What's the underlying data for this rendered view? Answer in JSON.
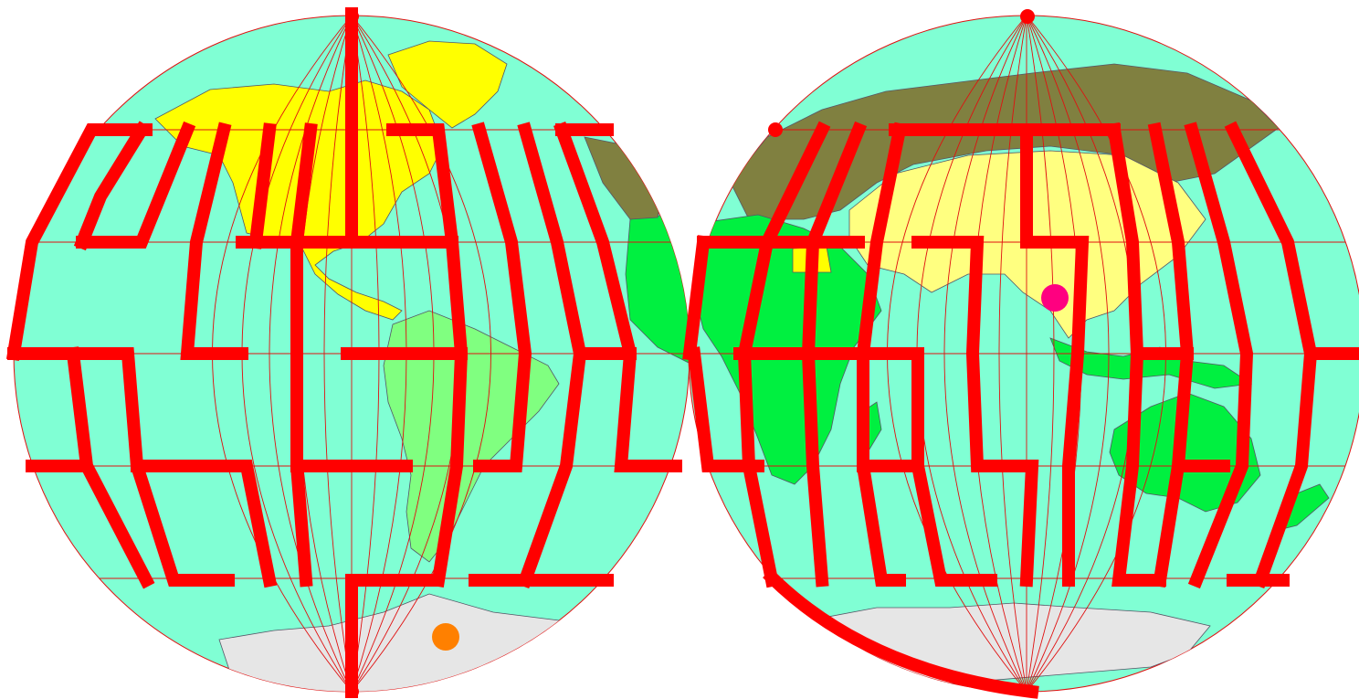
{
  "game": {
    "type": "maze",
    "colors": {
      "ocean": "#80ffd4",
      "wall": "#ff0000",
      "grid": "#e01010",
      "north_america": "#ffff00",
      "south_america": "#80ff80",
      "africa": "#00f040",
      "australia": "#00f040",
      "europe_russia": "#808040",
      "asia": "#ffff80",
      "antarctica": "#e6e6e6",
      "start_marker": "#ff8000",
      "goal_marker": "#ff0080"
    },
    "markers": [
      {
        "name": "start-marker",
        "color": "#ff8000",
        "hemisphere": "west"
      },
      {
        "name": "goal-marker",
        "color": "#ff0080",
        "hemisphere": "east"
      }
    ],
    "icons": [
      "globe-west",
      "globe-east",
      "maze-walls"
    ]
  }
}
